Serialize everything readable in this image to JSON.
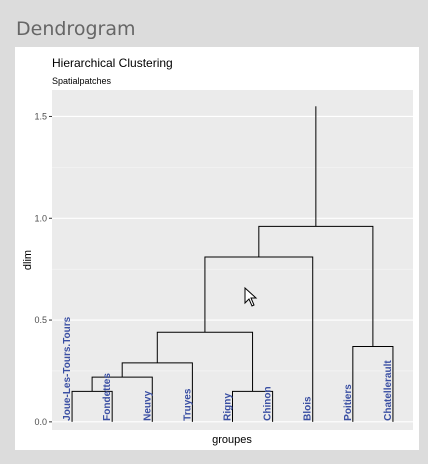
{
  "panel": {
    "title": "Dendrogram"
  },
  "chart_data": {
    "type": "dendrogram",
    "title": "Hierarchical Clustering",
    "subtitle": "Spatialpatches",
    "xlabel": "groupes",
    "ylabel": "dlim",
    "ylim": [
      -0.04,
      1.63
    ],
    "yticks": [
      0.0,
      0.5,
      1.0,
      1.5
    ],
    "ytick_labels": [
      "0.0",
      "0.5",
      "1.0",
      "1.5"
    ],
    "grid": true,
    "leaves": [
      "Joue-Les-Tours.Tours",
      "Fondettes",
      "Neuvy",
      "Truyes",
      "Rigny",
      "Chinon",
      "Blois",
      "Poitiers",
      "Chatellerault"
    ],
    "label_color": "#3a4fa3",
    "merges": [
      {
        "left": "leaf:0",
        "right": "leaf:1",
        "height": 0.15
      },
      {
        "left": "leaf:4",
        "right": "leaf:5",
        "height": 0.15
      },
      {
        "left": "m0",
        "right": "leaf:2",
        "height": 0.22
      },
      {
        "left": "m2",
        "right": "leaf:3",
        "height": 0.29
      },
      {
        "left": "leaf:7",
        "right": "leaf:8",
        "height": 0.37
      },
      {
        "left": "m3",
        "right": "m1",
        "height": 0.44
      },
      {
        "left": "m5",
        "right": "leaf:6",
        "height": 0.81
      },
      {
        "left": "m6",
        "right": "m4",
        "height": 0.96
      },
      {
        "left": "m7",
        "right": "m7",
        "height": 1.55,
        "root": true
      }
    ]
  }
}
